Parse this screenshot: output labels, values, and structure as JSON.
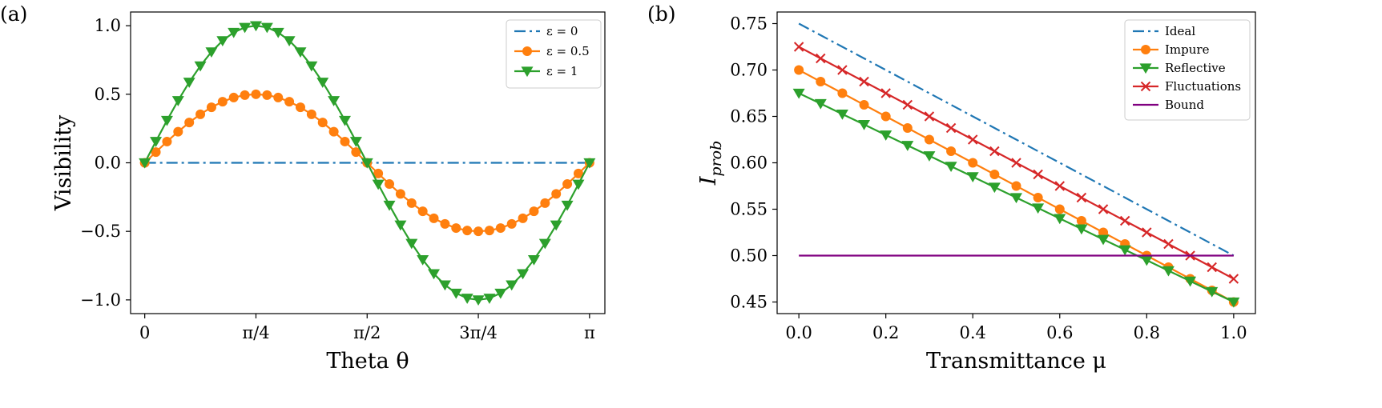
{
  "chart_data": [
    {
      "panel_label": "(a)",
      "type": "line",
      "xlabel": "Theta θ",
      "ylabel": "Visibility",
      "xlim": [
        -0.1,
        3.25
      ],
      "ylim": [
        -1.1,
        1.1
      ],
      "x_ticks": [
        {
          "value": 0,
          "label": "0"
        },
        {
          "value": 0.7854,
          "label": "π/4"
        },
        {
          "value": 1.5708,
          "label": "π/2"
        },
        {
          "value": 2.3562,
          "label": "3π/4"
        },
        {
          "value": 3.1416,
          "label": "π"
        }
      ],
      "y_ticks": [
        {
          "value": -1.0,
          "label": "−1.0"
        },
        {
          "value": -0.5,
          "label": "−0.5"
        },
        {
          "value": 0.0,
          "label": "0.0"
        },
        {
          "value": 0.5,
          "label": "0.5"
        },
        {
          "value": 1.0,
          "label": "1.0"
        }
      ],
      "legend_position": "top-right",
      "x": [
        0,
        0.0785,
        0.1571,
        0.2356,
        0.3142,
        0.3927,
        0.4712,
        0.5498,
        0.6283,
        0.7069,
        0.7854,
        0.8639,
        0.9425,
        1.021,
        1.0996,
        1.1781,
        1.2566,
        1.3352,
        1.4137,
        1.4923,
        1.5708,
        1.6493,
        1.7279,
        1.8064,
        1.885,
        1.9635,
        2.042,
        2.1206,
        2.1991,
        2.2777,
        2.3562,
        2.4347,
        2.5133,
        2.5918,
        2.6704,
        2.7489,
        2.8274,
        2.906,
        2.9845,
        3.0631,
        3.1416
      ],
      "series": [
        {
          "name": "ε = 0",
          "color": "#1f77b4",
          "dash": "dashdot",
          "marker": "none",
          "values": [
            0,
            0,
            0,
            0,
            0,
            0,
            0,
            0,
            0,
            0,
            0,
            0,
            0,
            0,
            0,
            0,
            0,
            0,
            0,
            0,
            0,
            0,
            0,
            0,
            0,
            0,
            0,
            0,
            0,
            0,
            0,
            0,
            0,
            0,
            0,
            0,
            0,
            0,
            0,
            0,
            0
          ]
        },
        {
          "name": "ε = 0.5",
          "color": "#ff7f0e",
          "dash": "solid",
          "marker": "circle",
          "values": [
            0,
            0.078,
            0.155,
            0.227,
            0.294,
            0.354,
            0.405,
            0.446,
            0.476,
            0.494,
            0.5,
            0.494,
            0.476,
            0.446,
            0.405,
            0.354,
            0.294,
            0.227,
            0.155,
            0.078,
            0,
            -0.078,
            -0.155,
            -0.227,
            -0.294,
            -0.354,
            -0.405,
            -0.446,
            -0.476,
            -0.494,
            -0.5,
            -0.494,
            -0.476,
            -0.446,
            -0.405,
            -0.354,
            -0.294,
            -0.227,
            -0.155,
            -0.078,
            0
          ]
        },
        {
          "name": "ε = 1",
          "color": "#2ca02c",
          "dash": "solid",
          "marker": "triangle-down",
          "values": [
            0,
            0.156,
            0.309,
            0.454,
            0.588,
            0.707,
            0.809,
            0.891,
            0.951,
            0.988,
            1.0,
            0.988,
            0.951,
            0.891,
            0.809,
            0.707,
            0.588,
            0.454,
            0.309,
            0.156,
            0,
            -0.156,
            -0.309,
            -0.454,
            -0.588,
            -0.707,
            -0.809,
            -0.891,
            -0.951,
            -0.988,
            -1.0,
            -0.988,
            -0.951,
            -0.891,
            -0.809,
            -0.707,
            -0.588,
            -0.454,
            -0.309,
            -0.156,
            0
          ]
        }
      ]
    },
    {
      "panel_label": "(b)",
      "type": "line",
      "xlabel": "Transmittance μ",
      "ylabel_main": "I",
      "ylabel_sub": "prob",
      "xlim": [
        -0.05,
        1.05
      ],
      "ylim": [
        0.4375,
        0.7625
      ],
      "x_ticks": [
        {
          "value": 0.0,
          "label": "0.0"
        },
        {
          "value": 0.2,
          "label": "0.2"
        },
        {
          "value": 0.4,
          "label": "0.4"
        },
        {
          "value": 0.6,
          "label": "0.6"
        },
        {
          "value": 0.8,
          "label": "0.8"
        },
        {
          "value": 1.0,
          "label": "1.0"
        }
      ],
      "y_ticks": [
        {
          "value": 0.45,
          "label": "0.45"
        },
        {
          "value": 0.5,
          "label": "0.50"
        },
        {
          "value": 0.55,
          "label": "0.55"
        },
        {
          "value": 0.6,
          "label": "0.60"
        },
        {
          "value": 0.65,
          "label": "0.65"
        },
        {
          "value": 0.7,
          "label": "0.70"
        },
        {
          "value": 0.75,
          "label": "0.75"
        }
      ],
      "legend_position": "top-right",
      "x": [
        0,
        0.05,
        0.1,
        0.15,
        0.2,
        0.25,
        0.3,
        0.35,
        0.4,
        0.45,
        0.5,
        0.55,
        0.6,
        0.65,
        0.7,
        0.75,
        0.8,
        0.85,
        0.9,
        0.95,
        1.0
      ],
      "series": [
        {
          "name": "Ideal",
          "color": "#1f77b4",
          "dash": "dashdot",
          "marker": "none",
          "values": [
            0.75,
            0.7375,
            0.725,
            0.7125,
            0.7,
            0.6875,
            0.675,
            0.6625,
            0.65,
            0.6375,
            0.625,
            0.6125,
            0.6,
            0.5875,
            0.575,
            0.5625,
            0.55,
            0.5375,
            0.525,
            0.5125,
            0.5
          ]
        },
        {
          "name": "Impure",
          "color": "#ff7f0e",
          "dash": "solid",
          "marker": "circle",
          "values": [
            0.7,
            0.6875,
            0.675,
            0.6625,
            0.65,
            0.6375,
            0.625,
            0.6125,
            0.6,
            0.5875,
            0.575,
            0.5625,
            0.55,
            0.5375,
            0.525,
            0.5125,
            0.5,
            0.4875,
            0.475,
            0.4625,
            0.45
          ]
        },
        {
          "name": "Reflective",
          "color": "#2ca02c",
          "dash": "solid",
          "marker": "triangle-down",
          "values": [
            0.675,
            0.66375,
            0.6525,
            0.64125,
            0.63,
            0.61875,
            0.6075,
            0.59625,
            0.585,
            0.57375,
            0.5625,
            0.55125,
            0.54,
            0.52875,
            0.5175,
            0.50625,
            0.495,
            0.48375,
            0.4725,
            0.46125,
            0.45
          ]
        },
        {
          "name": "Fluctuations",
          "color": "#d62728",
          "dash": "solid",
          "marker": "x",
          "values": [
            0.725,
            0.7125,
            0.7,
            0.6875,
            0.675,
            0.6625,
            0.65,
            0.6375,
            0.625,
            0.6125,
            0.6,
            0.5875,
            0.575,
            0.5625,
            0.55,
            0.5375,
            0.525,
            0.5125,
            0.5,
            0.4875,
            0.475
          ]
        },
        {
          "name": "Bound",
          "color": "#800080",
          "dash": "solid",
          "marker": "none",
          "values": [
            0.5,
            0.5,
            0.5,
            0.5,
            0.5,
            0.5,
            0.5,
            0.5,
            0.5,
            0.5,
            0.5,
            0.5,
            0.5,
            0.5,
            0.5,
            0.5,
            0.5,
            0.5,
            0.5,
            0.5,
            0.5
          ]
        }
      ]
    }
  ]
}
